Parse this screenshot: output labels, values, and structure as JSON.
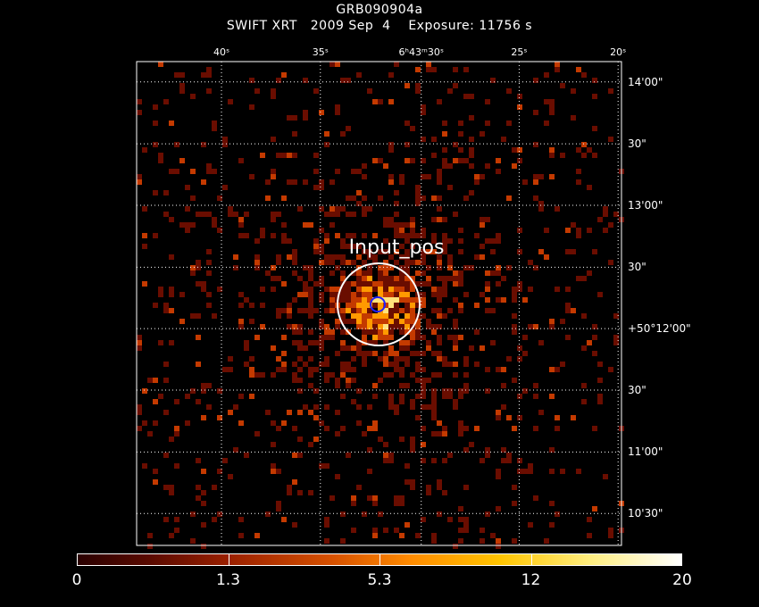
{
  "title": "GRB090904a",
  "subtitle": "SWIFT XRT   2009 Sep  4    Exposure: 11756 s",
  "source_label": "Input_pos",
  "ra_labels": [
    {
      "text": "40ˢ",
      "frac": 0.175
    },
    {
      "text": "35ˢ",
      "frac": 0.379
    },
    {
      "text": "6ʰ43ᵐ30ˢ",
      "frac": 0.587
    },
    {
      "text": "25ˢ",
      "frac": 0.789
    },
    {
      "text": "20ˢ",
      "frac": 0.993
    }
  ],
  "dec_labels": [
    {
      "text": "14'00\"",
      "frac": 0.042
    },
    {
      "text": "30\"",
      "frac": 0.17
    },
    {
      "text": "13'00\"",
      "frac": 0.297
    },
    {
      "text": "30\"",
      "frac": 0.425
    },
    {
      "text": "+50°12'00\"",
      "frac": 0.552
    },
    {
      "text": "30\"",
      "frac": 0.679
    },
    {
      "text": "11'00\"",
      "frac": 0.807
    },
    {
      "text": "10'30\"",
      "frac": 0.934
    }
  ],
  "colorbar": {
    "labels": [
      "0",
      "1.3",
      "5.3",
      "12",
      "20"
    ],
    "tick_fracs": [
      0.0,
      0.25,
      0.5,
      0.75,
      1.0
    ]
  },
  "colors": {
    "low": "#6a0d00",
    "mid": "#c43a00",
    "high": "#ff9a00",
    "peak": "#ffe27a",
    "source_circle": "#ffffff",
    "input_circle": "#2020ff"
  }
}
